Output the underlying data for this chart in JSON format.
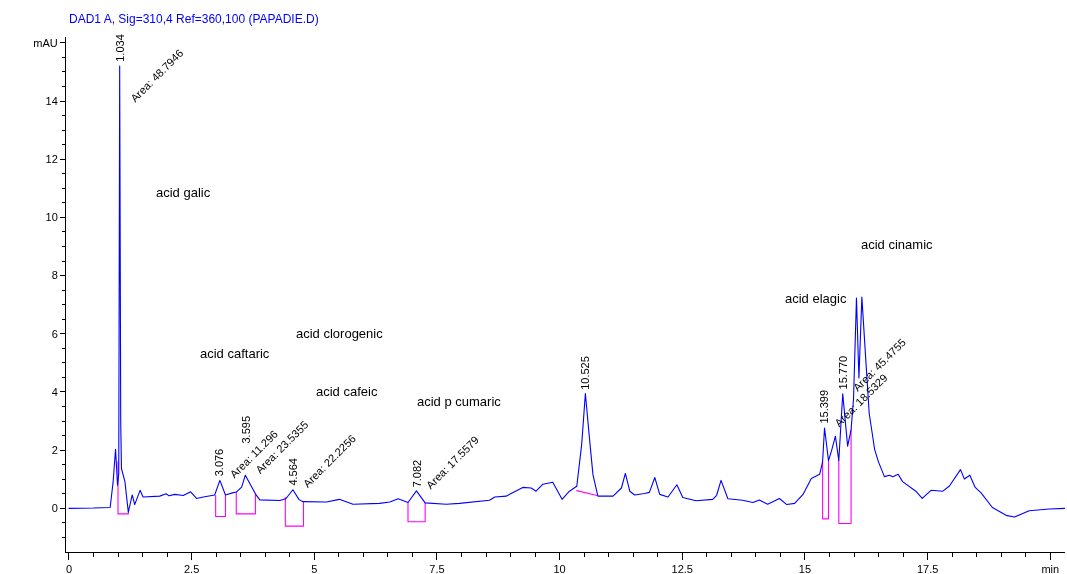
{
  "chart_data": {
    "type": "line",
    "title": "DAD1 A, Sig=310,4 Ref=360,100 (PAPADIE.D)",
    "xlim": [
      -0.06,
      20.3
    ],
    "ylim": [
      -1.5,
      16.2
    ],
    "xticks": [
      0,
      {
        "value": 0.5,
        "label": null
      },
      {
        "value": 1,
        "label": null
      },
      {
        "value": 1.5,
        "label": null
      },
      {
        "value": 2,
        "label": null
      },
      2.5,
      {
        "value": 3,
        "label": null
      },
      {
        "value": 3.5,
        "label": null
      },
      {
        "value": 4,
        "label": null
      },
      {
        "value": 4.5,
        "label": null
      },
      5,
      {
        "value": 5.5,
        "label": null
      },
      {
        "value": 6,
        "label": null
      },
      {
        "value": 6.5,
        "label": null
      },
      {
        "value": 7,
        "label": null
      },
      7.5,
      {
        "value": 8,
        "label": null
      },
      {
        "value": 8.5,
        "label": null
      },
      {
        "value": 9,
        "label": null
      },
      {
        "value": 9.5,
        "label": null
      },
      10,
      {
        "value": 10.5,
        "label": null
      },
      {
        "value": 11,
        "label": null
      },
      {
        "value": 11.5,
        "label": null
      },
      {
        "value": 12,
        "label": null
      },
      12.5,
      {
        "value": 13,
        "label": null
      },
      {
        "value": 13.5,
        "label": null
      },
      {
        "value": 14,
        "label": null
      },
      {
        "value": 14.5,
        "label": null
      },
      15,
      {
        "value": 15.5,
        "label": null
      },
      {
        "value": 16,
        "label": null
      },
      {
        "value": 16.5,
        "label": null
      },
      {
        "value": 17,
        "label": null
      },
      17.5,
      {
        "value": 18,
        "label": null
      },
      {
        "value": 18.5,
        "label": null
      },
      {
        "value": 19,
        "label": null
      },
      {
        "value": 19.5,
        "label": null
      },
      {
        "value": 20,
        "label": "min"
      }
    ],
    "yticks": [
      {
        "value": -1,
        "label": null
      },
      {
        "value": -0.5,
        "label": null
      },
      0,
      {
        "value": 0.5,
        "label": null
      },
      {
        "value": 1,
        "label": null
      },
      {
        "value": 1.5,
        "label": null
      },
      2,
      {
        "value": 2.5,
        "label": null
      },
      {
        "value": 3,
        "label": null
      },
      {
        "value": 3.5,
        "label": null
      },
      4,
      {
        "value": 4.5,
        "label": null
      },
      {
        "value": 5,
        "label": null
      },
      {
        "value": 5.5,
        "label": null
      },
      6,
      {
        "value": 6.5,
        "label": null
      },
      {
        "value": 7,
        "label": null
      },
      {
        "value": 7.5,
        "label": null
      },
      8,
      {
        "value": 8.5,
        "label": null
      },
      {
        "value": 9,
        "label": null
      },
      {
        "value": 9.5,
        "label": null
      },
      10,
      {
        "value": 10.5,
        "label": null
      },
      {
        "value": 11,
        "label": null
      },
      {
        "value": 11.5,
        "label": null
      },
      12,
      {
        "value": 12.5,
        "label": null
      },
      {
        "value": 13,
        "label": null
      },
      {
        "value": 13.5,
        "label": null
      },
      14,
      {
        "value": 14.5,
        "label": null
      },
      {
        "value": 15,
        "label": null
      },
      {
        "value": 15.5,
        "label": null
      },
      {
        "value": 16,
        "label": "mAU"
      }
    ],
    "series": [
      {
        "color": "#ff00ff",
        "x": [
          1.0,
          1.0,
          1.21,
          1.21
        ],
        "values": [
          1.6,
          -0.19,
          -0.19,
          -0.13
        ]
      },
      {
        "color": "#ff00ff",
        "x": [
          2.99,
          2.99,
          3.19,
          3.19
        ],
        "values": [
          0.44,
          -0.28,
          -0.28,
          0.46
        ]
      },
      {
        "color": "#ff00ff",
        "x": [
          3.41,
          3.41,
          3.8,
          3.8
        ],
        "values": [
          0.56,
          -0.19,
          -0.19,
          0.5
        ]
      },
      {
        "color": "#ff00ff",
        "x": [
          4.41,
          4.41,
          4.78,
          4.78
        ],
        "values": [
          0.37,
          -0.61,
          -0.61,
          0.23
        ]
      },
      {
        "color": "#ff00ff",
        "x": [
          6.91,
          6.91,
          7.26,
          7.26
        ],
        "values": [
          0.2,
          -0.46,
          -0.46,
          0.19
        ]
      },
      {
        "color": "#ff00ff",
        "x": [
          10.35,
          10.76
        ],
        "values": [
          0.61,
          0.44
        ]
      },
      {
        "color": "#ff00ff",
        "x": [
          15.36,
          15.36,
          15.48,
          15.48
        ],
        "values": [
          1.61,
          -0.36,
          -0.36,
          1.64
        ]
      },
      {
        "color": "#ff00ff",
        "x": [
          15.69,
          15.69,
          15.94,
          15.94
        ],
        "values": [
          1.64,
          -0.52,
          -0.52,
          2.7
        ]
      },
      {
        "color": "#0000ff",
        "x": [
          0,
          0.5,
          0.84,
          0.9,
          0.95,
          0.99,
          1.015,
          1.034,
          1.055,
          1.07,
          1.14,
          1.21,
          1.29,
          1.34,
          1.45,
          1.51,
          1.85,
          1.98,
          2.04,
          2.16,
          2.33,
          2.48,
          2.6,
          2.74,
          2.97,
          3.076,
          3.19,
          3.35,
          3.41,
          3.52,
          3.595,
          3.7,
          3.8,
          3.89,
          4.3,
          4.42,
          4.564,
          4.69,
          4.77,
          5.25,
          5.51,
          5.79,
          6.33,
          6.54,
          6.71,
          6.91,
          7.082,
          7.26,
          7.69,
          7.96,
          8.57,
          8.68,
          8.91,
          9.25,
          9.42,
          9.52,
          9.66,
          9.86,
          10.05,
          10.2,
          10.35,
          10.45,
          10.525,
          10.62,
          10.68,
          10.78,
          11.09,
          11.26,
          11.34,
          11.43,
          11.53,
          11.73,
          11.83,
          11.94,
          12.04,
          12.21,
          12.39,
          12.51,
          12.78,
          13.12,
          13.2,
          13.29,
          13.43,
          13.73,
          13.94,
          14.07,
          14.24,
          14.48,
          14.63,
          14.79,
          14.96,
          15.13,
          15.3,
          15.36,
          15.399,
          15.48,
          15.55,
          15.62,
          15.69,
          15.77,
          15.87,
          15.94,
          15.99,
          16.05,
          16.1,
          16.16,
          16.23,
          16.31,
          16.42,
          16.5,
          16.62,
          16.72,
          16.79,
          16.9,
          16.99,
          17.26,
          17.39,
          17.57,
          17.81,
          17.94,
          18.17,
          18.25,
          18.36,
          18.47,
          18.59,
          18.82,
          19.1,
          19.27,
          19.57,
          19.98,
          20.3
        ],
        "values": [
          0,
          0.01,
          0.03,
          0.9,
          2.03,
          0.8,
          1.2,
          15.2,
          3.0,
          1.37,
          0.93,
          -0.13,
          0.46,
          0.13,
          0.62,
          0.39,
          0.42,
          0.5,
          0.43,
          0.48,
          0.44,
          0.57,
          0.34,
          0.39,
          0.46,
          0.96,
          0.46,
          0.54,
          0.56,
          0.73,
          1.14,
          0.81,
          0.5,
          0.29,
          0.27,
          0.33,
          0.64,
          0.3,
          0.23,
          0.22,
          0.31,
          0.14,
          0.17,
          0.22,
          0.33,
          0.2,
          0.6,
          0.19,
          0.14,
          0.17,
          0.28,
          0.39,
          0.42,
          0.72,
          0.7,
          0.59,
          0.83,
          0.9,
          0.31,
          0.59,
          0.76,
          2.2,
          3.95,
          2.2,
          1.15,
          0.42,
          0.42,
          0.7,
          1.2,
          0.59,
          0.46,
          0.51,
          0.55,
          1.06,
          0.48,
          0.39,
          0.81,
          0.37,
          0.26,
          0.31,
          0.45,
          0.96,
          0.33,
          0.28,
          0.2,
          0.29,
          0.14,
          0.34,
          0.13,
          0.17,
          0.48,
          1.03,
          1.17,
          1.61,
          2.76,
          1.64,
          2.03,
          2.48,
          1.64,
          3.94,
          2.14,
          2.7,
          3.76,
          7.23,
          4.48,
          7.26,
          5.37,
          3.26,
          2.03,
          1.59,
          1.09,
          1.14,
          1.09,
          1.17,
          0.92,
          0.59,
          0.34,
          0.62,
          0.59,
          0.76,
          1.33,
          1.01,
          1.14,
          0.72,
          0.53,
          0.03,
          -0.24,
          -0.3,
          -0.08,
          -0.02,
          0
        ]
      }
    ],
    "annotations": [
      "acid galic",
      "acid caftaric",
      "acid clorogenic",
      "acid cafeic",
      "acid p cumaric",
      "acid elagic",
      "acid cinamic",
      {
        "text": "1.034",
        "x": 1.034,
        "y": 15.2
      },
      {
        "text": "3.076",
        "x": 3.076,
        "y": 0.96
      },
      {
        "text": "3.595",
        "x": 3.595,
        "y": 1.14
      },
      {
        "text": "4.564",
        "x": 4.564,
        "y": 0.64
      },
      {
        "text": "7.082",
        "x": 7.082,
        "y": 0.6
      },
      {
        "text": "10.525",
        "x": 10.525,
        "y": 3.95
      },
      {
        "text": "15.399",
        "x": 15.399,
        "y": 2.76
      },
      {
        "text": "15.770",
        "x": 15.77,
        "y": 3.94
      },
      {
        "text": "Area: 48.7946",
        "x": 1.034,
        "y": 15.2
      },
      {
        "text": "Area: 11.296",
        "x": 3.076,
        "y": 0.96
      },
      {
        "text": "Area: 23.5355",
        "x": 3.595,
        "y": 1.14
      },
      {
        "text": "Area: 22.2256",
        "x": 4.564,
        "y": 0.64
      },
      {
        "text": "Area: 17.5579",
        "x": 7.082,
        "y": 0.6
      },
      {
        "text": "Area: 18.5329",
        "x": 15.399,
        "y": 2.76
      },
      {
        "text": "Area: 45.4755",
        "x": 15.77,
        "y": 3.94
      }
    ]
  }
}
